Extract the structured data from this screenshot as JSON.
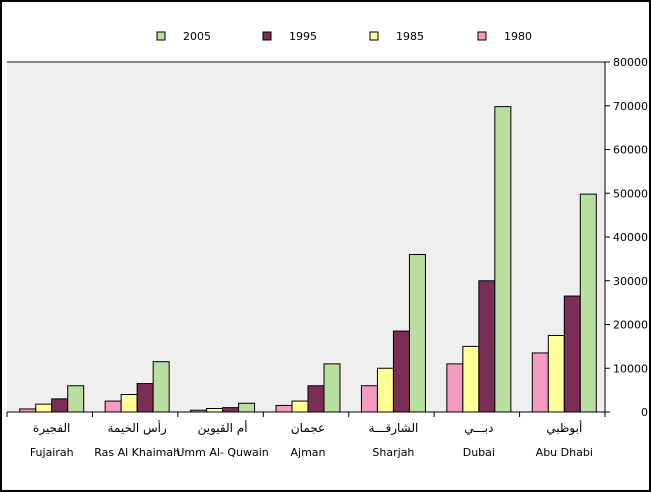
{
  "chart_data": {
    "type": "bar",
    "categories": [
      {
        "ar": "الفجيرة",
        "en": "Fujairah"
      },
      {
        "ar": "رأس الخيمة",
        "en": "Ras Al Khaimah"
      },
      {
        "ar": "أم القيوين",
        "en": "Umm Al- Quwain"
      },
      {
        "ar": "عجمان",
        "en": "Ajman"
      },
      {
        "ar": "الشارقـــة",
        "en": "Sharjah"
      },
      {
        "ar": "دبـــي",
        "en": "Dubai"
      },
      {
        "ar": "أبوظبي",
        "en": "Abu Dhabi"
      }
    ],
    "series": [
      {
        "name": "1980",
        "color": "#f49ac1",
        "values": [
          700,
          2500,
          400,
          1500,
          6000,
          11000,
          13500
        ]
      },
      {
        "name": "1985",
        "color": "#ffff99",
        "values": [
          1800,
          4000,
          800,
          2500,
          10000,
          15000,
          17500
        ]
      },
      {
        "name": "1995",
        "color": "#7b2d55",
        "values": [
          3000,
          6500,
          1000,
          6000,
          18500,
          30000,
          26500
        ]
      },
      {
        "name": "2005",
        "color": "#b8dea0",
        "values": [
          6000,
          11500,
          2000,
          11000,
          36000,
          69800,
          49800
        ]
      }
    ],
    "legend_order": [
      "2005",
      "1995",
      "1985",
      "1980"
    ],
    "legend_position": "top",
    "y_ticks": [
      "0",
      "10000",
      "20000",
      "30000",
      "40000",
      "50000",
      "60000",
      "70000",
      "80000"
    ],
    "ylim": [
      0,
      80000
    ],
    "y_axis_side": "right",
    "title": "",
    "xlabel": "",
    "ylabel": ""
  }
}
